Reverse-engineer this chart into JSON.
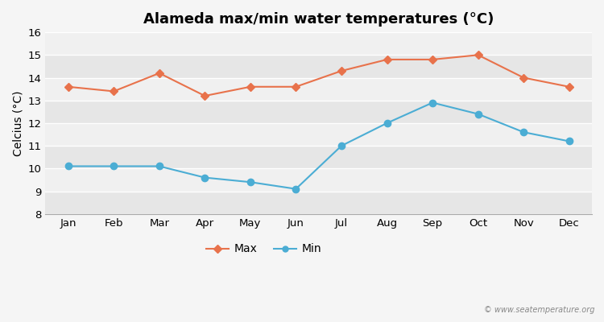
{
  "title": "Alameda max/min water temperatures (°C)",
  "ylabel": "Celcius (°C)",
  "months": [
    "Jan",
    "Feb",
    "Mar",
    "Apr",
    "May",
    "Jun",
    "Jul",
    "Aug",
    "Sep",
    "Oct",
    "Nov",
    "Dec"
  ],
  "max_values": [
    13.6,
    13.4,
    14.2,
    13.2,
    13.6,
    13.6,
    14.3,
    14.8,
    14.8,
    15.0,
    14.0,
    13.6
  ],
  "min_values": [
    10.1,
    10.1,
    10.1,
    9.6,
    9.4,
    9.1,
    11.0,
    12.0,
    12.9,
    12.4,
    11.6,
    11.2
  ],
  "max_color": "#e8724b",
  "min_color": "#4badd4",
  "figure_bg": "#f5f5f5",
  "plot_bg_light": "#f0f0f0",
  "plot_bg_dark": "#e6e6e6",
  "grid_color": "#ffffff",
  "ylim": [
    8,
    16
  ],
  "yticks": [
    8,
    9,
    10,
    11,
    12,
    13,
    14,
    15,
    16
  ],
  "watermark": "© www.seatemperature.org",
  "title_fontsize": 13,
  "label_fontsize": 10,
  "tick_fontsize": 9.5,
  "legend_max_label": "Max",
  "legend_min_label": "Min"
}
